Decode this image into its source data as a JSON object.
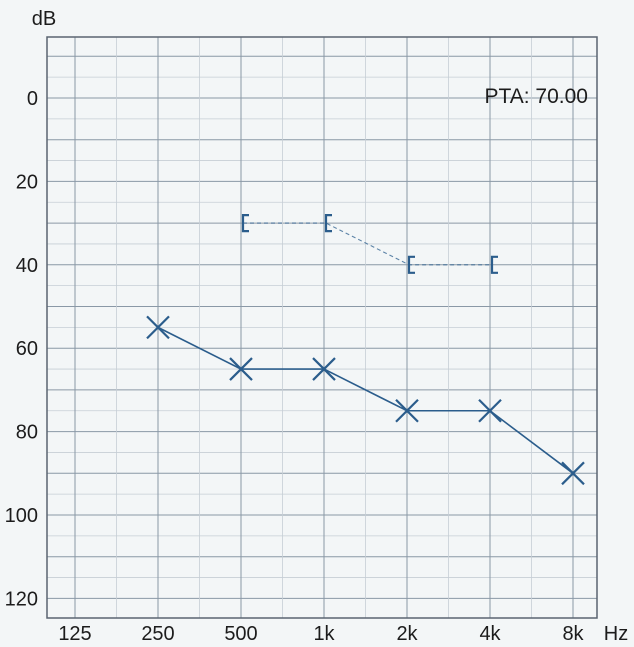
{
  "chart_data": {
    "type": "line",
    "y_unit": "dB",
    "x_unit": "Hz",
    "x_tick_labels": [
      "125",
      "250",
      "500",
      "1k",
      "2k",
      "4k",
      "8k"
    ],
    "y_tick_labels": [
      "0",
      "20",
      "40",
      "60",
      "80",
      "100",
      "120"
    ],
    "y_ticks": [
      0,
      20,
      40,
      60,
      80,
      100,
      120
    ],
    "ylim": [
      -15,
      125
    ],
    "y_inverted": true,
    "grid": true,
    "annotation": "PTA: 70.00",
    "series": [
      {
        "marker": "x",
        "line": "solid",
        "points": [
          {
            "x": "250",
            "y": 55
          },
          {
            "x": "500",
            "y": 65
          },
          {
            "x": "1k",
            "y": 65
          },
          {
            "x": "2k",
            "y": 75
          },
          {
            "x": "4k",
            "y": 75
          },
          {
            "x": "8k",
            "y": 90
          }
        ]
      },
      {
        "marker": "bracket-left",
        "line": "dashed",
        "points": [
          {
            "x": "500",
            "y": 30
          },
          {
            "x": "1k",
            "y": 30
          },
          {
            "x": "2k",
            "y": 40
          },
          {
            "x": "4k",
            "y": 40
          }
        ]
      }
    ],
    "colors": {
      "grid": "#8a98a6",
      "grid_minor": "#c6ced5",
      "frame": "#5a6470",
      "marker": "#2b5d8c",
      "text": "#1c1c1c"
    }
  }
}
